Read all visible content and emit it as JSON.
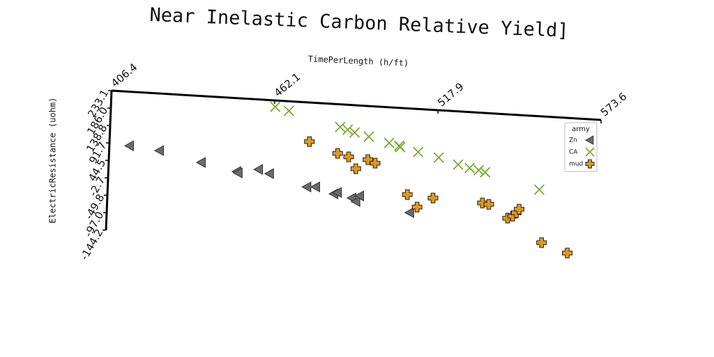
{
  "chart_data": {
    "type": "scatter",
    "title": "Near Inelastic Carbon Relative Yield]",
    "x_label": "TimePerLength (h/ft)",
    "y_label": "ElectricResistance (uohm)",
    "xlim": [
      406.4,
      573.6
    ],
    "xticks": [
      406.4,
      462.1,
      517.9,
      573.6
    ],
    "ylim": [
      -144.2,
      233.1
    ],
    "yticks": [
      233.1,
      {
        "value": 186,
        "label": "186.0"
      },
      138.8,
      91.7,
      44.5,
      -2.7,
      -49.8,
      {
        "value": -97,
        "label": "-97.0"
      },
      -144.2
    ],
    "legend_title": "army",
    "legend_loc": "upper right",
    "series": [
      {
        "name": "Zn",
        "color": "#6b6b6b",
        "marker": "triangle-left",
        "x": [
          413.3,
          423.6,
          438.0,
          450.2,
          450.7,
          457.6,
          461.4,
          474.3,
          477.3,
          483.6,
          484.8,
          489.8,
          491.2,
          492.4,
          509.7
        ],
        "values": [
          87.1,
          79.1,
          53.8,
          35.0,
          31.6,
          44.1,
          34.6,
          4.8,
          6.3,
          -9.5,
          -5.3,
          -17.8,
          -26.8,
          -11.0,
          -48.0
        ]
      },
      {
        "name": "CA",
        "color": "#7aab2e",
        "marker": "x",
        "x": [
          462.4,
          467.1,
          484.8,
          487.4,
          489.8,
          494.7,
          501.7,
          505.2,
          505.5,
          511.7,
          518.8,
          525.5,
          529.5,
          532.6,
          534.8,
          553.5
        ],
        "values": [
          216.1,
          207.1,
          172.0,
          165.9,
          159.5,
          150.5,
          136.8,
          130.9,
          127.1,
          116.9,
          105.2,
          89.4,
          82.2,
          77.7,
          73.1,
          35.0
        ]
      },
      {
        "name": "mud",
        "color": "#e0981e",
        "marker": "plus",
        "x": [
          474.5,
          484.3,
          488.1,
          490.7,
          494.7,
          497.2,
          508.6,
          512.1,
          517.4,
          534.3,
          536.5,
          543.1,
          544.8,
          546.0,
          546.9,
          555.0,
          563.9
        ],
        "values": [
          127.5,
          100.3,
          92.7,
          61.8,
          88.2,
          79.9,
          0.3,
          -31.8,
          -4.9,
          -10.2,
          -12.9,
          -47.2,
          -40.8,
          -31.0,
          -21.1,
          -107.8,
          -131.7
        ]
      }
    ]
  }
}
